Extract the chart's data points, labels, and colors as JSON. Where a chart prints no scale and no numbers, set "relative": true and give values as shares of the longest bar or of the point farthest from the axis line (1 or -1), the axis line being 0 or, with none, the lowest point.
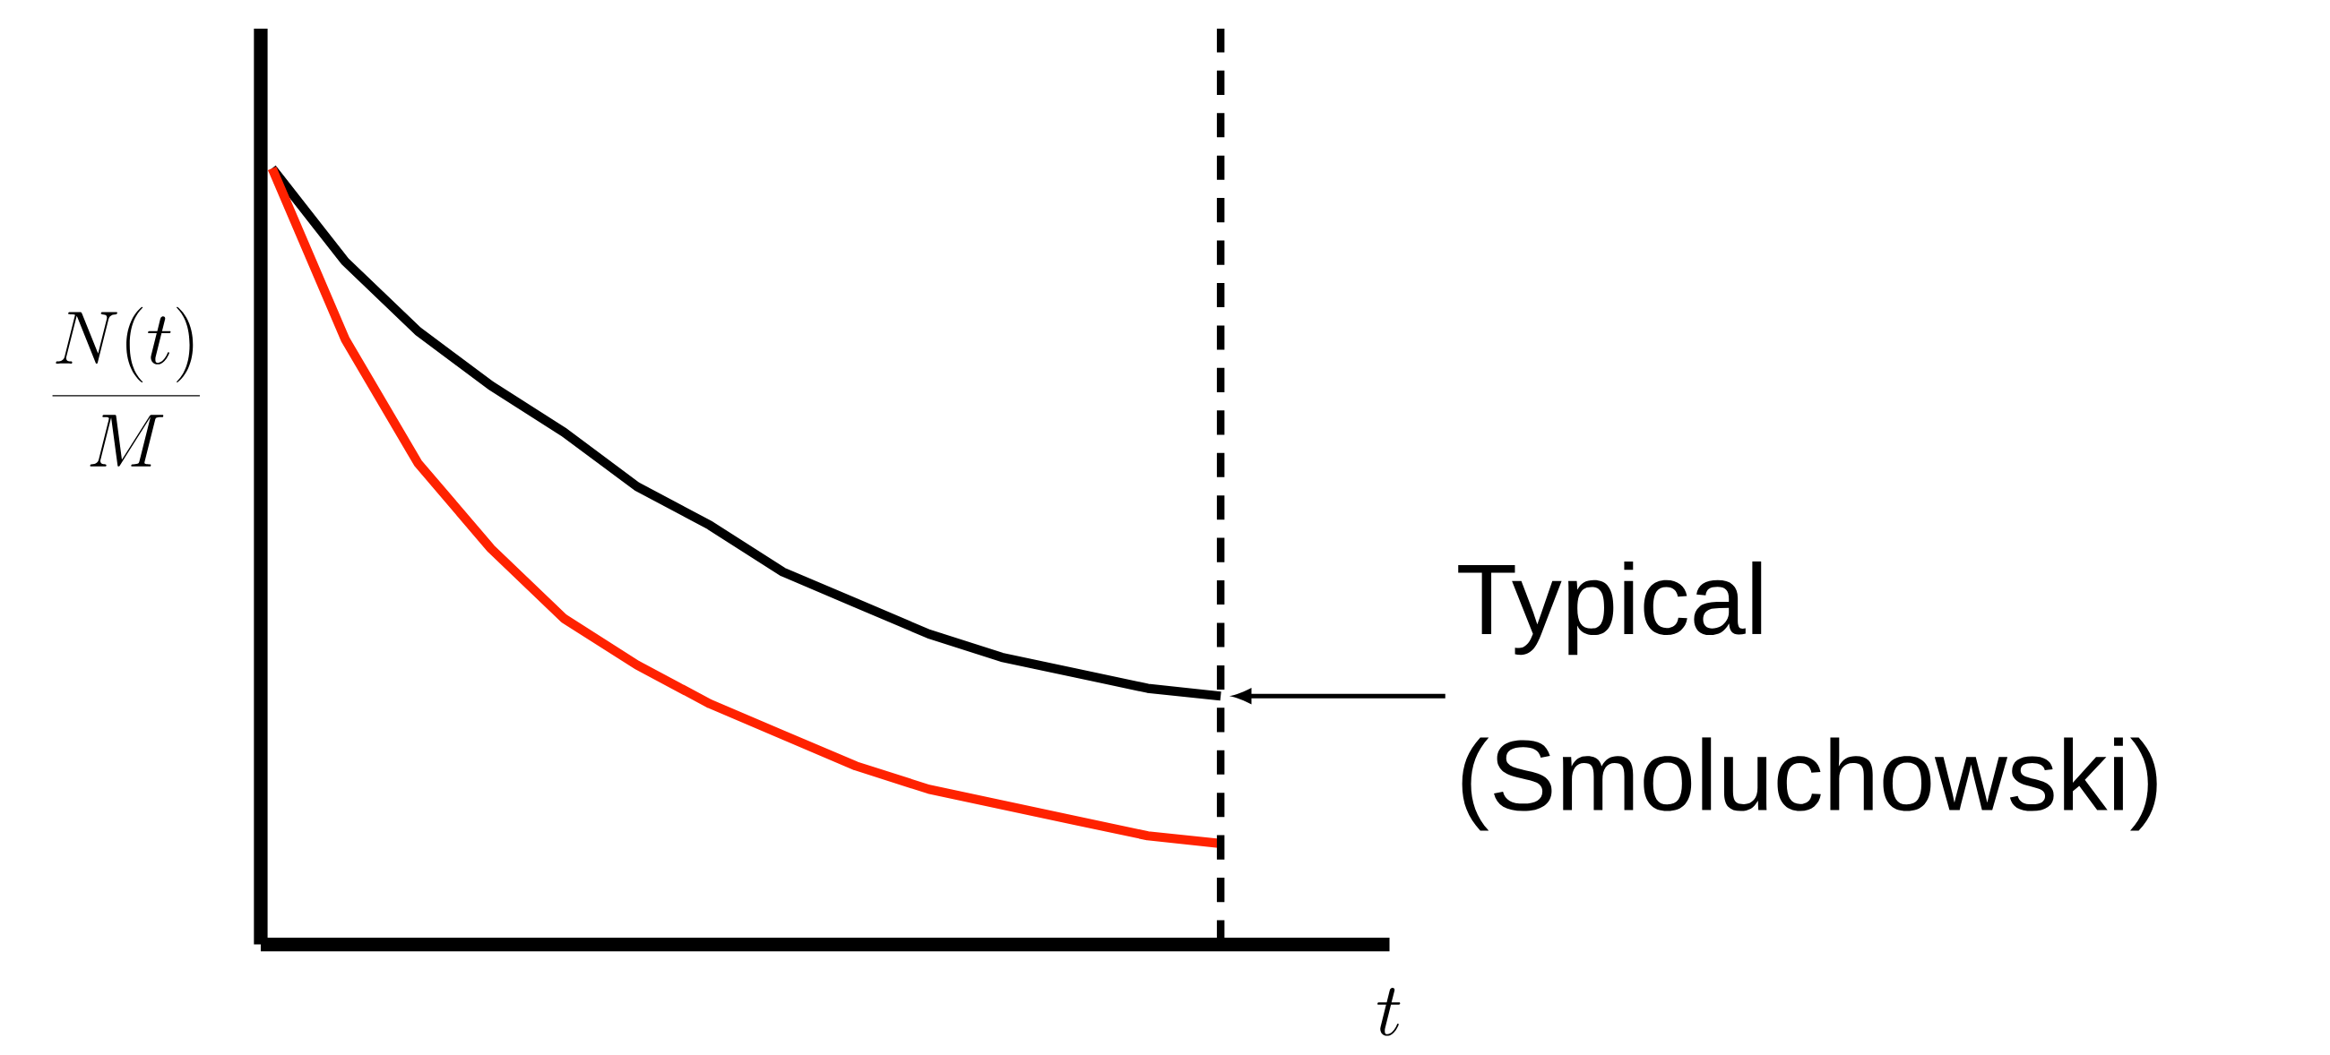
{
  "chart_data": {
    "type": "line",
    "relative": true,
    "xlabel": "t",
    "ylabel": "\\frac{N(t)}{M}",
    "categories": [
      null,
      null,
      null,
      null,
      null,
      null,
      null,
      null,
      null,
      null,
      null,
      null,
      null,
      null
    ],
    "series": [
      {
        "color": "#000000",
        "values": [
          1,
          0.88,
          0.79,
          0.72,
          0.66,
          0.59,
          0.54,
          0.48,
          0.44,
          0.4,
          0.37,
          0.35,
          0.33,
          0.32
        ]
      },
      {
        "color": "#ff2200",
        "values": [
          1,
          0.78,
          0.62,
          0.51,
          0.42,
          0.36,
          0.31,
          0.27,
          0.23,
          0.2,
          0.18,
          0.16,
          0.14,
          0.13
        ]
      }
    ],
    "ref_lines": [
      {
        "axis": "x",
        "line_style": "dashed"
      }
    ],
    "annotations": [
      "Typical (Smoluchowski)"
    ]
  }
}
